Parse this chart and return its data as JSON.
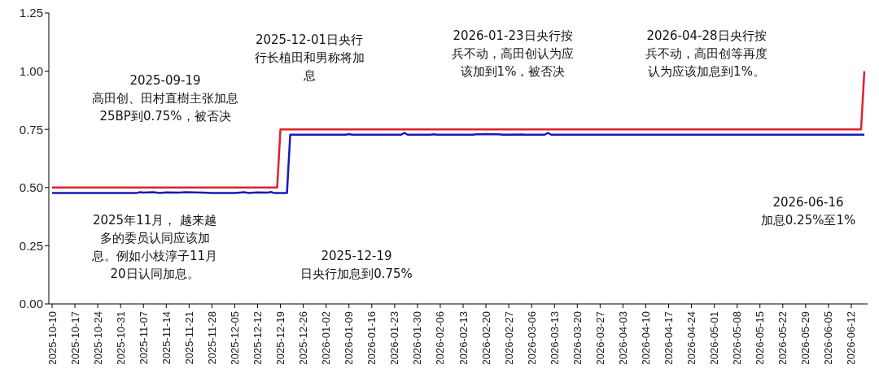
{
  "chart_data": {
    "type": "line",
    "series": [
      {
        "color": "#e0202a",
        "x": [
          "2025-10-10",
          "2025-12-18",
          "2025-12-19",
          "2026-06-15",
          "2026-06-16"
        ],
        "values": [
          0.5,
          0.5,
          0.75,
          0.75,
          1.0
        ]
      },
      {
        "color": "#1a1ab4",
        "x": [
          "2025-10-10",
          "2025-11-05",
          "2025-11-06",
          "2025-11-07",
          "2025-11-10",
          "2025-11-12",
          "2025-11-14",
          "2025-11-18",
          "2025-11-20",
          "2025-11-25",
          "2025-11-28",
          "2025-12-05",
          "2025-12-08",
          "2025-12-09",
          "2025-12-12",
          "2025-12-15",
          "2025-12-16",
          "2025-12-17",
          "2025-12-21",
          "2025-12-22",
          "2026-01-08",
          "2026-01-09",
          "2026-01-10",
          "2026-01-25",
          "2026-01-26",
          "2026-01-27",
          "2026-02-03",
          "2026-02-04",
          "2026-02-05",
          "2026-02-16",
          "2026-02-17",
          "2026-02-20",
          "2026-02-24",
          "2026-02-25",
          "2026-03-03",
          "2026-03-04",
          "2026-03-10",
          "2026-03-11",
          "2026-03-12",
          "2026-06-16"
        ],
        "values": [
          0.477,
          0.477,
          0.48,
          0.478,
          0.48,
          0.477,
          0.479,
          0.478,
          0.48,
          0.478,
          0.477,
          0.477,
          0.48,
          0.477,
          0.479,
          0.478,
          0.481,
          0.477,
          0.477,
          0.727,
          0.727,
          0.73,
          0.727,
          0.727,
          0.735,
          0.727,
          0.727,
          0.729,
          0.727,
          0.727,
          0.729,
          0.73,
          0.729,
          0.727,
          0.728,
          0.727,
          0.727,
          0.735,
          0.727,
          0.727
        ]
      }
    ],
    "xlim": [
      "2025-10-09",
      "2026-06-17"
    ],
    "xticks": [
      "2025-10-10",
      "2025-10-17",
      "2025-10-24",
      "2025-10-31",
      "2025-11-07",
      "2025-11-14",
      "2025-11-21",
      "2025-11-28",
      "2025-12-05",
      "2025-12-12",
      "2025-12-19",
      "2025-12-26",
      "2026-01-02",
      "2026-01-09",
      "2026-01-16",
      "2026-01-23",
      "2026-01-30",
      "2026-02-06",
      "2026-02-13",
      "2026-02-20",
      "2026-02-27",
      "2026-03-06",
      "2026-03-13",
      "2026-03-20",
      "2026-03-27",
      "2026-04-03",
      "2026-04-10",
      "2026-04-17",
      "2026-04-24",
      "2026-05-01",
      "2026-05-08",
      "2026-05-15",
      "2026-05-22",
      "2026-05-29",
      "2026-06-05",
      "2026-06-12"
    ],
    "ylim": [
      0,
      1.25
    ],
    "yticks": [
      {
        "value": 0,
        "label": "0.00"
      },
      0.25,
      {
        "value": 0.5,
        "label": "0.50"
      },
      0.75,
      {
        "value": 1,
        "label": "1.00"
      },
      1.25
    ],
    "grid": false,
    "legend": false,
    "marker": "none",
    "line_style": "solid",
    "annotations": [
      "2025-09-19\n高田创、田村直樹主张加息\n25BP到0.75%，被否决",
      "2025-12-01日央行行长植田和男称将加息",
      "2026-01-23日央行按兵不动，高田创认为应该加到1%，被否决",
      "2026-04-28日央行按兵不动，高田创等再度认为应该加息到1%。",
      "2026-06-16\n加息0.25%至1%",
      "2025年11月， 越来越多的委员认同应该加息。例如小枝淳子11月20日认同加息。",
      "2025-12-19\n日央行加息到0.75%"
    ]
  }
}
